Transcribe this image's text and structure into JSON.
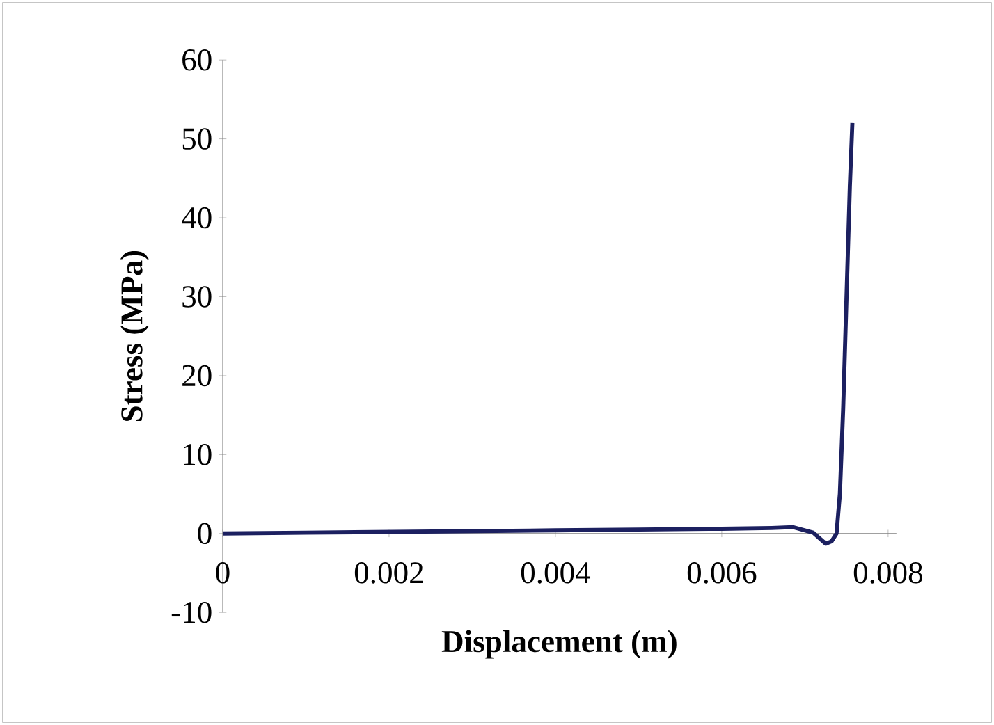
{
  "chart_data": {
    "type": "line",
    "xlabel": "Displacement (m)",
    "ylabel": "Stress (MPa)",
    "x": [
      0,
      0.001,
      0.002,
      0.003,
      0.004,
      0.005,
      0.006,
      0.0066,
      0.00686,
      0.0071,
      0.00725,
      0.00732,
      0.00738,
      0.00742,
      0.00746,
      0.00751,
      0.00754,
      0.00757
    ],
    "series": [
      {
        "color": "#1c2060",
        "values": [
          0,
          0.1,
          0.2,
          0.3,
          0.4,
          0.5,
          0.6,
          0.7,
          0.8,
          0.1,
          -1.3,
          -1.0,
          0,
          5,
          15.9,
          33.5,
          44,
          52
        ]
      }
    ],
    "xlim": [
      0,
      0.0081
    ],
    "ylim": [
      -10,
      60
    ],
    "xticks": [
      0,
      0.002,
      0.004,
      0.006,
      0.008
    ],
    "yticks": [
      -10,
      0,
      10,
      20,
      30,
      40,
      50,
      60
    ],
    "grid": false,
    "marker": "none",
    "line_style": "solid"
  }
}
